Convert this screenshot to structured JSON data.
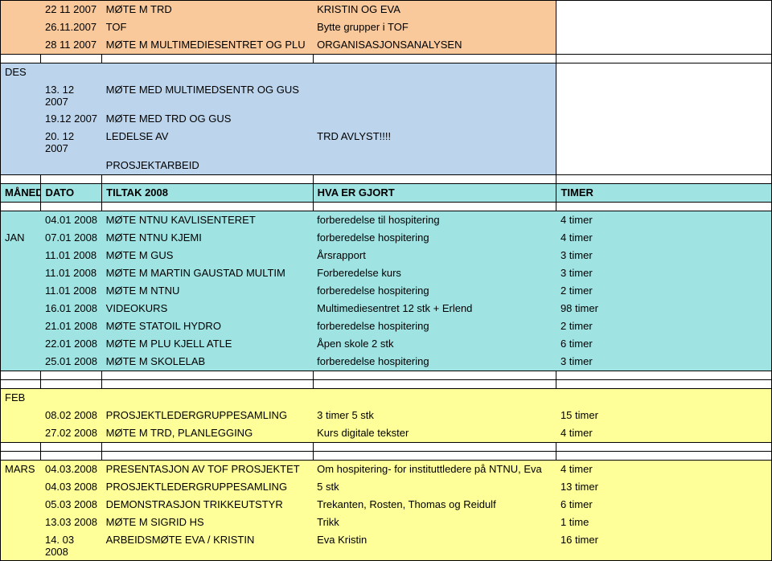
{
  "colors": {
    "peach": "#f9c99b",
    "blue": "#bcd5ec",
    "teal": "#9fe3e3",
    "yellow": "#ffff99",
    "white": "#ffffff",
    "border": "#000000"
  },
  "rows": [
    {
      "bg": "peach",
      "month": "",
      "date": "22 11 2007",
      "action": "MØTE M TRD",
      "result": "KRISTIN OG EVA",
      "timer": ""
    },
    {
      "bg": "peach",
      "month": "",
      "date": "26.11.2007",
      "action": "TOF",
      "result": "Bytte grupper i TOF",
      "timer": ""
    },
    {
      "bg": "peach",
      "month": "",
      "date": "28 11 2007",
      "action": "MØTE M MULTIMEDIESENTRET OG PLU",
      "result": "ORGANISASJONSANALYSEN",
      "timer": ""
    },
    {
      "bg": "white",
      "spacer": true
    },
    {
      "bg": "blue",
      "month": "DES",
      "date": "",
      "action": "",
      "result": "",
      "timer": ""
    },
    {
      "bg": "blue",
      "month": "",
      "date": "13. 12 2007",
      "action": "MØTE MED MULTIMEDSENTR OG GUS",
      "result": "",
      "timer": ""
    },
    {
      "bg": "blue",
      "month": "",
      "date": "19.12 2007",
      "action": "MØTE MED TRD OG GUS",
      "result": "",
      "timer": ""
    },
    {
      "bg": "blue",
      "month": "",
      "date": "20. 12 2007",
      "action": "LEDELSE AV",
      "result": "TRD AVLYST!!!!",
      "timer": ""
    },
    {
      "bg": "blue",
      "month": "",
      "date": "",
      "action": "PROSJEKTARBEID",
      "result": "",
      "timer": ""
    },
    {
      "bg": "white",
      "spacer": true
    },
    {
      "bg": "teal",
      "bold": true,
      "month": "MÅNED",
      "date": "DATO",
      "action": "TILTAK 2008",
      "result": "HVA ER GJORT",
      "timer": "TIMER",
      "header": true
    },
    {
      "bg": "white",
      "spacer": true
    },
    {
      "bg": "teal",
      "month": "",
      "date": "04.01 2008",
      "action": "MØTE NTNU KAVLISENTERET",
      "result": "forberedelse til hospitering",
      "timer": "4 timer"
    },
    {
      "bg": "teal",
      "month": "JAN",
      "date": "07.01 2008",
      "action": "MØTE NTNU KJEMI",
      "result": "forberedelse hospitering",
      "timer": "4 timer"
    },
    {
      "bg": "teal",
      "month": "",
      "date": "11.01 2008",
      "action": "MØTE M GUS",
      "result": "Årsrapport",
      "timer": "3 timer"
    },
    {
      "bg": "teal",
      "month": "",
      "date": "11.01 2008",
      "action": "MØTE M MARTIN GAUSTAD MULTIM",
      "result": "Forberedelse kurs",
      "timer": "3 timer"
    },
    {
      "bg": "teal",
      "month": "",
      "date": "11.01 2008",
      "action": "MØTE M NTNU",
      "result": "forberedelse hospitering",
      "timer": "2 timer"
    },
    {
      "bg": "teal",
      "month": "",
      "date": "16.01 2008",
      "action": "VIDEOKURS",
      "result": "Multimediesentret 12 stk + Erlend",
      "timer": "98 timer"
    },
    {
      "bg": "teal",
      "month": "",
      "date": "21.01 2008",
      "action": "MØTE STATOIL HYDRO",
      "result": "forberedelse hospitering",
      "timer": "2 timer"
    },
    {
      "bg": "teal",
      "month": "",
      "date": "22.01 2008",
      "action": "MØTE M PLU KJELL ATLE",
      "result": "Åpen skole     2 stk",
      "timer": "6 timer"
    },
    {
      "bg": "teal",
      "month": "",
      "date": "25.01 2008",
      "action": "MØTE M SKOLELAB",
      "result": "forberedelse hospitering",
      "timer": "3 timer"
    },
    {
      "bg": "white",
      "spacer": true
    },
    {
      "bg": "white",
      "spacer": true
    },
    {
      "bg": "yellow",
      "month": "FEB",
      "date": "",
      "action": "",
      "result": "",
      "timer": ""
    },
    {
      "bg": "yellow",
      "month": "",
      "date": "08.02 2008",
      "action": "PROSJEKTLEDERGRUPPESAMLING",
      "result": "3 timer 5 stk",
      "timer": "15 timer"
    },
    {
      "bg": "yellow",
      "month": "",
      "date": "27.02 2008",
      "action": "MØTE M TRD,  PLANLEGGING",
      "result": "Kurs digitale tekster",
      "timer": "4 timer"
    },
    {
      "bg": "white",
      "spacer": true
    },
    {
      "bg": "white",
      "spacer": true
    },
    {
      "bg": "yellow",
      "month": "MARS",
      "date": "04.03.2008",
      "action": "PRESENTASJON AV TOF PROSJEKTET",
      "result": "Om hospitering- for instituttledere på NTNU, Eva",
      "timer": "4 timer"
    },
    {
      "bg": "yellow",
      "month": "",
      "date": "04.03 2008",
      "action": "PROSJEKTLEDERGRUPPESAMLING",
      "result": "5 stk",
      "timer": "13 timer"
    },
    {
      "bg": "yellow",
      "month": "",
      "date": "05.03 2008",
      "action": "DEMONSTRASJON TRIKKEUTSTYR",
      "result": "Trekanten, Rosten, Thomas og Reidulf",
      "timer": "6 timer"
    },
    {
      "bg": "yellow",
      "month": "",
      "date": "13.03 2008",
      "action": "MØTE M SIGRID HS",
      "result": "Trikk",
      "timer": "1 time"
    },
    {
      "bg": "yellow",
      "month": "",
      "date": "14. 03 2008",
      "action": "ARBEIDSMØTE EVA / KRISTIN",
      "result": "Eva Kristin",
      "timer": "16 timer"
    }
  ]
}
